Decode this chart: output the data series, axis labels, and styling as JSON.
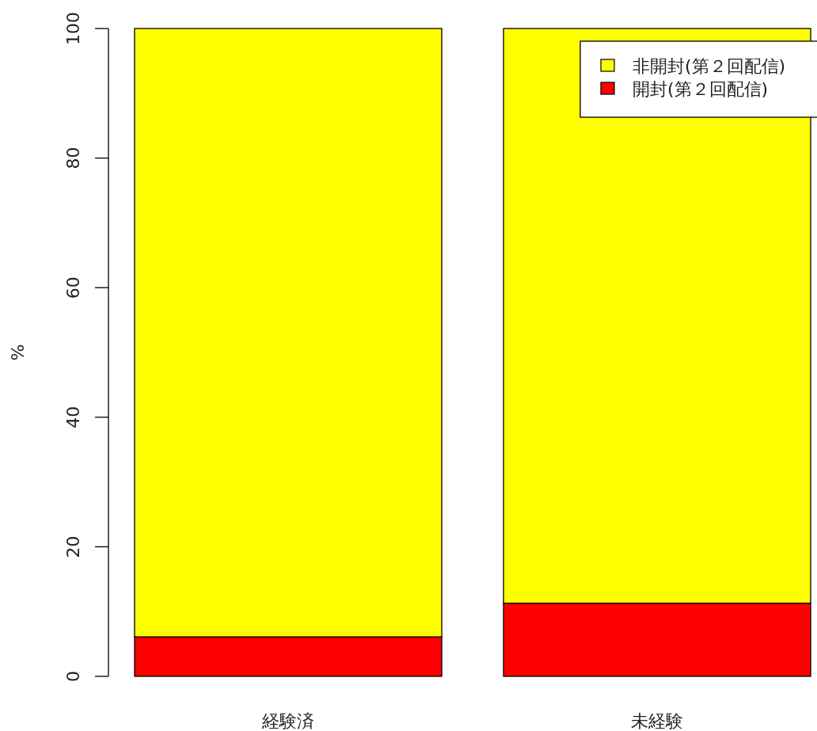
{
  "chart_data": {
    "type": "bar",
    "stacked": true,
    "categories": [
      "経験済",
      "未経験"
    ],
    "ylabel": "%",
    "ylim": [
      0,
      100
    ],
    "yticks": [
      0,
      20,
      40,
      60,
      80,
      100
    ],
    "legend": "top right",
    "grid": false,
    "series": [
      {
        "name": "開封(第２回配信)",
        "color": "#ff0000",
        "values": [
          6.1,
          11.3
        ]
      },
      {
        "name": "非開封(第２回配信)",
        "color": "#ffff00",
        "values": [
          93.9,
          88.7
        ]
      }
    ]
  }
}
